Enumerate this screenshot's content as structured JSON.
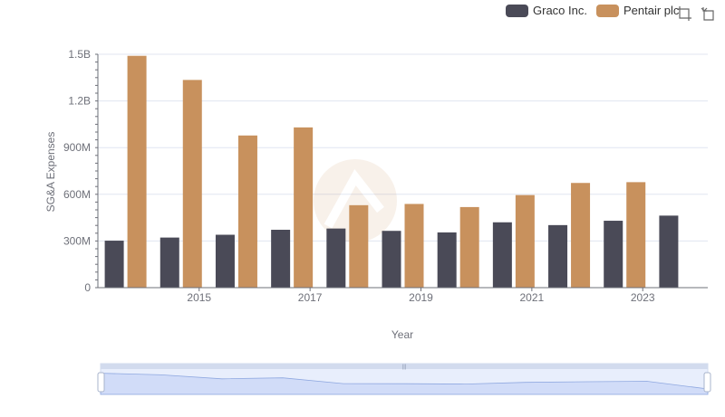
{
  "chart_data": {
    "type": "bar",
    "title": "",
    "xlabel": "Year",
    "ylabel": "SG&A Expenses",
    "x": [
      2014,
      2015,
      2016,
      2017,
      2018,
      2019,
      2020,
      2021,
      2022,
      2023,
      2024
    ],
    "x_tick_labels": [
      "2015",
      "2017",
      "2019",
      "2021",
      "2023"
    ],
    "x_tick_values": [
      2015,
      2017,
      2019,
      2021,
      2023
    ],
    "y_ticks": [
      0,
      300000000,
      600000000,
      900000000,
      1200000000,
      1500000000
    ],
    "y_tick_labels": [
      "0",
      "300M",
      "600M",
      "900M",
      "1.2B",
      "1.5B"
    ],
    "ylim": [
      0,
      1500000000
    ],
    "legend_position": "top-right",
    "grid": true,
    "series": [
      {
        "name": "Graco Inc.",
        "color": "#4a4a57",
        "values": [
          302000000,
          322000000,
          340000000,
          372000000,
          380000000,
          365000000,
          355000000,
          420000000,
          402000000,
          430000000,
          463000000
        ]
      },
      {
        "name": "Pentair plc",
        "color": "#c8915d",
        "values": [
          1490000000,
          1335000000,
          978000000,
          1030000000,
          530000000,
          538000000,
          518000000,
          595000000,
          673000000,
          678000000,
          null
        ]
      }
    ]
  },
  "toolbox": {
    "zoom_icon": "zoom-area-icon",
    "restore_icon": "restore-icon"
  }
}
